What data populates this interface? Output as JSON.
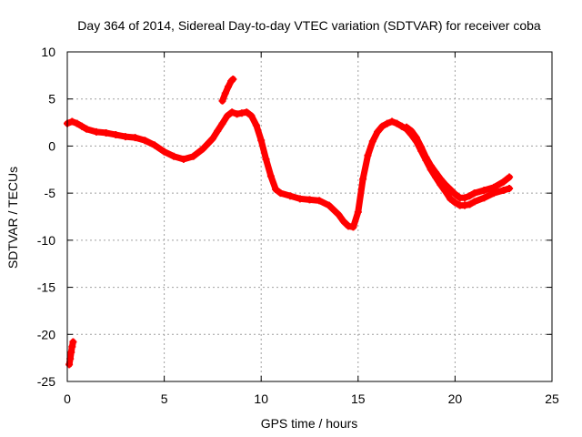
{
  "chart_data": {
    "type": "scatter",
    "title": "Day 364 of 2014, Sidereal Day-to-day VTEC variation (SDTVAR) for receiver coba",
    "xlabel": "GPS time / hours",
    "ylabel": "SDTVAR / TECUs",
    "xlim": [
      0,
      25
    ],
    "ylim": [
      -25,
      10
    ],
    "xticks": [
      0,
      5,
      10,
      15,
      20,
      25
    ],
    "yticks": [
      10,
      5,
      0,
      -5,
      -10,
      -15,
      -20,
      -25
    ],
    "grid": true,
    "series_color": "#ff0000",
    "series": [
      {
        "name": "SDTVAR main",
        "x": [
          0.0,
          0.25,
          0.5,
          0.75,
          1.0,
          1.5,
          2.0,
          2.5,
          3.0,
          3.5,
          4.0,
          4.5,
          5.0,
          5.5,
          6.0,
          6.5,
          7.0,
          7.5,
          7.75,
          8.0,
          8.25,
          8.5,
          8.75,
          9.0,
          9.25,
          9.5,
          9.75,
          10.0,
          10.25,
          10.5,
          10.75,
          11.0,
          11.5,
          12.0,
          12.5,
          13.0,
          13.5,
          14.0,
          14.25,
          14.5,
          14.75,
          15.0,
          15.25,
          15.5,
          15.75,
          16.0,
          16.25,
          16.5,
          16.75,
          17.0,
          17.25,
          17.5,
          17.75,
          18.0,
          18.25,
          18.5,
          18.75,
          19.0,
          19.25,
          19.5,
          19.75,
          20.0,
          20.25,
          20.5,
          20.75,
          21.0,
          21.5,
          22.0,
          22.5,
          22.8
        ],
        "y": [
          2.4,
          2.6,
          2.4,
          2.1,
          1.8,
          1.5,
          1.4,
          1.2,
          1.0,
          0.9,
          0.6,
          0.1,
          -0.6,
          -1.1,
          -1.4,
          -1.1,
          -0.3,
          0.8,
          1.6,
          2.4,
          3.2,
          3.6,
          3.4,
          3.5,
          3.6,
          3.2,
          2.2,
          0.6,
          -1.4,
          -3.2,
          -4.6,
          -5.0,
          -5.3,
          -5.6,
          -5.7,
          -5.8,
          -6.3,
          -7.3,
          -8.0,
          -8.5,
          -8.6,
          -7.0,
          -3.5,
          -1.0,
          0.5,
          1.5,
          2.1,
          2.4,
          2.6,
          2.4,
          2.1,
          1.8,
          1.2,
          0.5,
          -0.5,
          -1.5,
          -2.5,
          -3.3,
          -4.1,
          -4.8,
          -5.6,
          -6.0,
          -6.3,
          -6.3,
          -6.2,
          -5.9,
          -5.5,
          -5.0,
          -4.7,
          -4.5
        ]
      },
      {
        "name": "SDTVAR upper branch",
        "x": [
          17.5,
          17.75,
          18.0,
          18.25,
          18.5,
          18.75,
          19.0,
          19.25,
          19.5,
          19.75,
          20.0,
          20.25,
          20.5,
          20.75,
          21.0,
          21.5,
          22.0,
          22.5,
          22.8
        ],
        "y": [
          2.0,
          1.6,
          0.9,
          -0.1,
          -1.2,
          -2.1,
          -2.8,
          -3.5,
          -4.1,
          -4.6,
          -5.1,
          -5.5,
          -5.5,
          -5.3,
          -5.0,
          -4.7,
          -4.4,
          -3.8,
          -3.3
        ]
      },
      {
        "name": "SDTVAR spike",
        "x": [
          8.0,
          8.15,
          8.3,
          8.45,
          8.55
        ],
        "y": [
          4.8,
          5.6,
          6.3,
          6.9,
          7.1
        ]
      },
      {
        "name": "SDTVAR start cluster",
        "x": [
          0.1,
          0.15,
          0.2,
          0.25,
          0.3
        ],
        "y": [
          -23.2,
          -22.6,
          -21.9,
          -21.3,
          -20.8
        ]
      }
    ]
  }
}
